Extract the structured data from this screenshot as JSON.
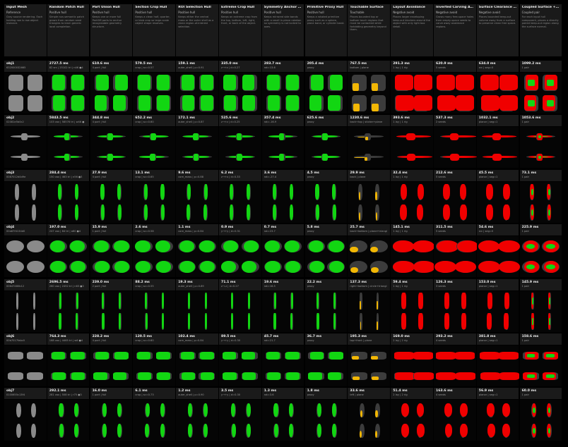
{
  "columns": [
    {
      "title": "Input Mesh",
      "subtitle": "Reference",
      "desc": "Gray source rendering. Each holding row is raw object instance.",
      "kind": "ref"
    },
    {
      "title": "Random Patch Hull",
      "subtitle": "Positive hull",
      "desc": "Simple non-semantic patch grown from random seed triangles to learn generic local completion.",
      "kind": "green"
    },
    {
      "title": "Part Union Hull",
      "subtitle": "Positive hull",
      "desc": "Keeps one or more full PartGM parts to anchor recognizable geometry structure.",
      "kind": "green"
    },
    {
      "title": "Section Crop Hull",
      "subtitle": "Positive hull",
      "desc": "Keeps a clean half, quarter, or blob crop so large-scale object shape resolves.",
      "kind": "green"
    },
    {
      "title": "ROI Selection Hull",
      "subtitle": "Positive hull",
      "desc": "Keeps either the central mass or the outer shell as a clean region-of-interest selection.",
      "kind": "green"
    },
    {
      "title": "Extreme Crop Hull",
      "subtitle": "Positive hull",
      "desc": "Keeps an extreme crop from the top, bottom, left, right, front, or back of the object.",
      "kind": "green"
    },
    {
      "title": "Symmetry Anchor Hull",
      "subtitle": "Positive hull",
      "desc": "Keeps mirrored side bands with a small in-plane rotation so symmetry is not locked to axes.",
      "kind": "green"
    },
    {
      "title": "Primitive Proxy Hull",
      "subtitle": "Positive hull",
      "desc": "Keeps a rotated primitive proxy such as a sphere, plane band, or cylinder band.",
      "kind": "green"
    },
    {
      "title": "Touchable Surface",
      "subtitle": "Touchable",
      "desc": "Places bounded top or bottom touch regions that must be contacted while forbidding geometry beyond them.",
      "kind": "yellow"
    },
    {
      "title": "Layout Avoidance",
      "subtitle": "Negative avoid",
      "desc": "Places larger enveloping keep-out blockers around the object with only light box detail.",
      "kind": "red"
    },
    {
      "title": "Inverted Carving Avoidance",
      "subtitle": "Negative avoid",
      "desc": "Grows many free-space holes from empty-space seeds to carve away avoidance regions.",
      "kind": "red"
    },
    {
      "title": "Surface Clearance Avoidance",
      "subtitle": "Negative avoid",
      "desc": "Places bounded keep-out volume away from a surface to preserve clean free space.",
      "kind": "red"
    },
    {
      "title": "Coupled Surface + Clearance",
      "subtitle": "Coupled pair",
      "desc": "For each input hull component, places a directly paired keep-out region along the surface normal.",
      "kind": "coupled"
    }
  ],
  "rows": [
    {
      "name": "obj1",
      "id": "632000032665",
      "shape": "chair",
      "stats": [
        {
          "time": "",
          "stat": ""
        },
        {
          "time": "2727.5 ms",
          "stat": "82 src | 25102 tri | n46 ●4"
        },
        {
          "time": "610.6 ms",
          "stat": "4 part | full"
        },
        {
          "time": "579.5 ms",
          "stat": "crop | sc=0.57"
        },
        {
          "time": "159.1 ms",
          "stat": "outer_shell | p=0.91"
        },
        {
          "time": "335.0 ms",
          "stat": "z→+z | d=0.27"
        },
        {
          "time": "283.7 ms",
          "stat": "rot=13.6"
        },
        {
          "time": "205.4 ms",
          "stat": "proxy"
        },
        {
          "time": "767.5 ms",
          "stat": "bottom | plane"
        },
        {
          "time": "291.3 ms",
          "stat": "1 lay | 1 rig"
        },
        {
          "time": "620.9 ms",
          "stat": "5 seeds"
        },
        {
          "time": "634.0 ms",
          "stat": "src | seg=0"
        },
        {
          "time": "1099.2 ms",
          "stat": "1 pair"
        }
      ]
    },
    {
      "name": "obj2",
      "id": "02081e5b0c2",
      "shape": "plane",
      "stats": [
        {
          "time": "",
          "stat": ""
        },
        {
          "time": "5843.5 ms",
          "stat": "103 vox | 58576 tri | w46 ●"
        },
        {
          "time": "344.8 ms",
          "stat": "4 part | full"
        },
        {
          "time": "652.2 ms",
          "stat": "crop | sc=0.60"
        },
        {
          "time": "172.1 ms",
          "stat": "outer_shell | p=0.87"
        },
        {
          "time": "525.6 ms",
          "stat": "z→+z | d=0.25"
        },
        {
          "time": "357.4 ms",
          "stat": "rot=-16.9"
        },
        {
          "time": "625.6 ms",
          "stat": "proxy"
        },
        {
          "time": "1230.6 ms",
          "stat": "back+top | sticker+plane"
        },
        {
          "time": "393.6 ms",
          "stat": "1 lay | 1 rig"
        },
        {
          "time": "537.3 ms",
          "stat": "2 seeds"
        },
        {
          "time": "1032.1 ms",
          "stat": "planar | seg=1"
        },
        {
          "time": "1053.6 ms",
          "stat": "1 pair"
        }
      ]
    },
    {
      "name": "obj3",
      "id": "0087012d4d9e",
      "shape": "figure",
      "stats": [
        {
          "time": "",
          "stat": ""
        },
        {
          "time": "284.4 ms",
          "stat": "150 vox | 463 tri | n56 ●3"
        },
        {
          "time": "27.9 ms",
          "stat": "4 part | full"
        },
        {
          "time": "13.1 ms",
          "stat": "crop | sc=0.65"
        },
        {
          "time": "9.6 ms",
          "stat": "core_mass | p=0.88"
        },
        {
          "time": "6.2 ms",
          "stat": "z→+x | d=0.33"
        },
        {
          "time": "3.6 ms",
          "stat": "rot=-27.4"
        },
        {
          "time": "4.5 ms",
          "stat": "proxy"
        },
        {
          "time": "29.9 ms",
          "stat": "back | plane"
        },
        {
          "time": "32.4 ms",
          "stat": "1 lay | 1 rig"
        },
        {
          "time": "212.6 ms",
          "stat": "5 seeds"
        },
        {
          "time": "45.5 ms",
          "stat": "planar | seg=1"
        },
        {
          "time": "73.1 ms",
          "stat": "1 pair"
        }
      ]
    },
    {
      "name": "obj4",
      "id": "00a87f4134d0",
      "shape": "disc",
      "stats": [
        {
          "time": "",
          "stat": ""
        },
        {
          "time": "197.0 ms",
          "stat": "247 vox | 84 tri | a60 ●4"
        },
        {
          "time": "15.9 ms",
          "stat": "1 part | full"
        },
        {
          "time": "2.6 ms",
          "stat": "crop | sc=0.58"
        },
        {
          "time": "1.1 ms",
          "stat": "core_mass | p=0.84"
        },
        {
          "time": "0.9 ms",
          "stat": "y→+y | d=0.31"
        },
        {
          "time": "0.7 ms",
          "stat": "rot=23.7"
        },
        {
          "time": "5.8 ms",
          "stat": "proxy"
        },
        {
          "time": "25.7 ms",
          "stat": "back+bottom | plane+triangl"
        },
        {
          "time": "145.1 ms",
          "stat": "1 lay | 1 rig"
        },
        {
          "time": "311.5 ms",
          "stat": "5 seeds"
        },
        {
          "time": "54.6 ms",
          "stat": "src | seg=0"
        },
        {
          "time": "225.9 ms",
          "stat": "1 pair"
        }
      ]
    },
    {
      "name": "obj5",
      "id": "00647480b12",
      "shape": "stick",
      "stats": [
        {
          "time": "",
          "stat": ""
        },
        {
          "time": "2696.5 ms",
          "stat": "260 vox | 2452 tri | n63 ●3"
        },
        {
          "time": "239.0 ms",
          "stat": "2 part | full"
        },
        {
          "time": "88.2 ms",
          "stat": "crop | sc=0.55"
        },
        {
          "time": "19.3 ms",
          "stat": "outer_shell | p=0.89"
        },
        {
          "time": "71.1 ms",
          "stat": "z→-z | d=0.27"
        },
        {
          "time": "19.6 ms",
          "stat": "rot=16.5"
        },
        {
          "time": "22.2 ms",
          "stat": "proxy"
        },
        {
          "time": "137.3 ms",
          "stat": "right+bottom | circle+triangl"
        },
        {
          "time": "59.4 ms",
          "stat": "1 lay | 1 rig"
        },
        {
          "time": "126.3 ms",
          "stat": "3 seeds"
        },
        {
          "time": "153.0 ms",
          "stat": "planar | seg=1"
        },
        {
          "time": "145.9 ms",
          "stat": "1 pair"
        }
      ]
    },
    {
      "name": "obj6",
      "id": "00b7017fabc0",
      "shape": "tractor",
      "stats": [
        {
          "time": "",
          "stat": ""
        },
        {
          "time": "764.3 ms",
          "stat": "168 vox | 4465 tri | w6 ●4"
        },
        {
          "time": "228.2 ms",
          "stat": "4 part | full"
        },
        {
          "time": "120.5 ms",
          "stat": "crop | sc=0.60"
        },
        {
          "time": "102.4 ms",
          "stat": "core_mass | p=0.84"
        },
        {
          "time": "89.5 ms",
          "stat": "y→+y | d=0.30"
        },
        {
          "time": "45.7 ms",
          "stat": "rot=21.7"
        },
        {
          "time": "36.7 ms",
          "stat": "proxy"
        },
        {
          "time": "195.3 ms",
          "stat": "top+front | plane"
        },
        {
          "time": "169.0 ms",
          "stat": "2 lay | 2 rig"
        },
        {
          "time": "293.2 ms",
          "stat": "4 seeds"
        },
        {
          "time": "381.8 ms",
          "stat": "planar | seg=1"
        },
        {
          "time": "158.6 ms",
          "stat": "1 pair"
        }
      ]
    },
    {
      "name": "obj7",
      "id": "0100655c13f4",
      "shape": "vase",
      "stats": [
        {
          "time": "",
          "stat": ""
        },
        {
          "time": "292.1 ms",
          "stat": "281 vox | 508 tri | r75 ●3"
        },
        {
          "time": "16.0 ms",
          "stat": "1 part | full"
        },
        {
          "time": "6.1 ms",
          "stat": "crop | sc=0.73"
        },
        {
          "time": "1.2 ms",
          "stat": "outer_shell | p=0.90"
        },
        {
          "time": "3.5 ms",
          "stat": "y→+y | d=0.30"
        },
        {
          "time": "1.3 ms",
          "stat": "rot=3.6"
        },
        {
          "time": "1.8 ms",
          "stat": "proxy"
        },
        {
          "time": "33.6 ms",
          "stat": "left | plane"
        },
        {
          "time": "51.4 ms",
          "stat": "2 lay | 2 rig"
        },
        {
          "time": "163.6 ms",
          "stat": "4 seeds"
        },
        {
          "time": "56.9 ms",
          "stat": "planar | seg=1"
        },
        {
          "time": "60.0 ms",
          "stat": "1 pair"
        }
      ]
    }
  ],
  "colors": {
    "gray": "#8a8a8a",
    "dark": "#3c3c3c",
    "green": "#12d612",
    "yellow": "#f2b705",
    "red": "#f00000"
  }
}
